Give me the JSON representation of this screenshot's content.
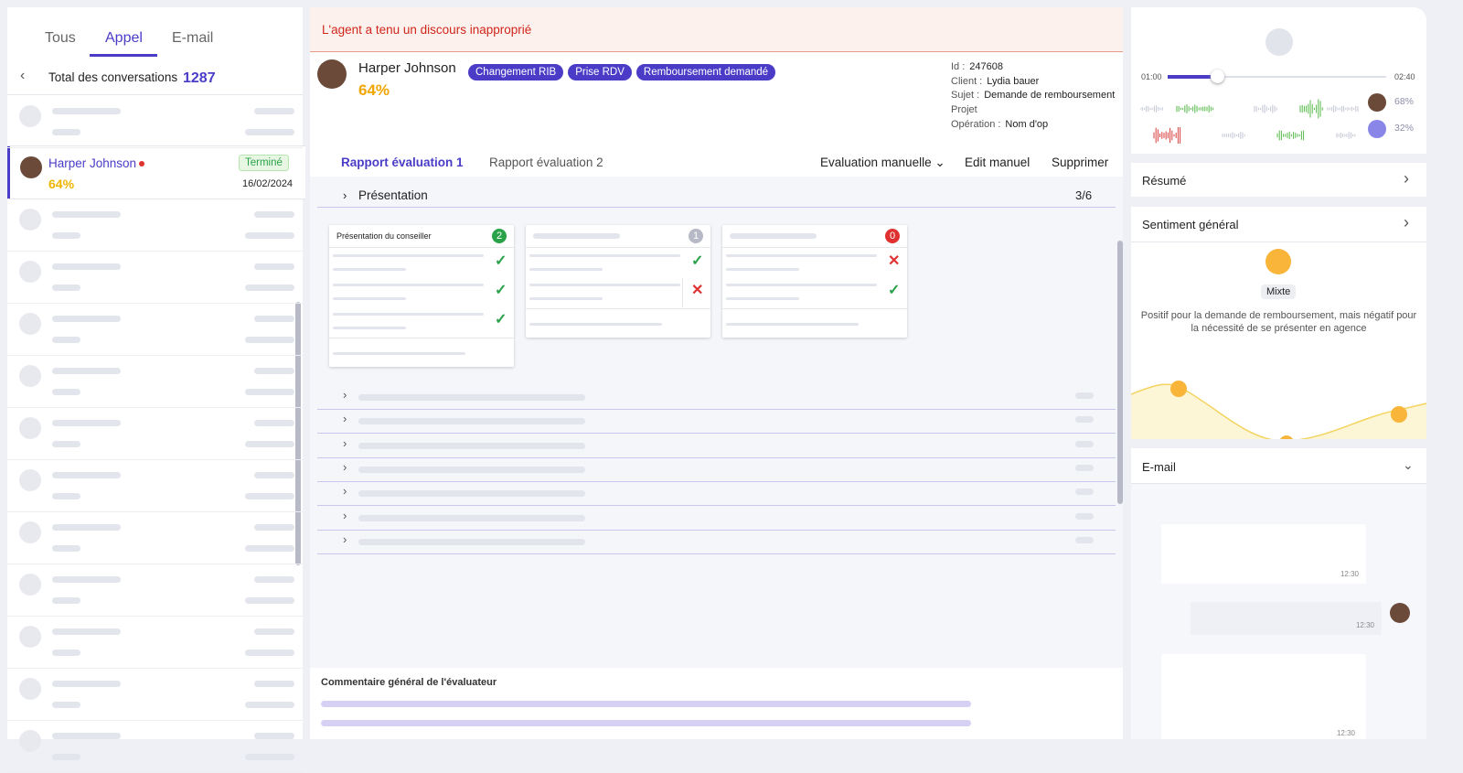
{
  "left": {
    "tabs": [
      "Tous",
      "Appel",
      "E-mail"
    ],
    "total_label": "Total des conversations",
    "total_value": "1287",
    "selected": {
      "name": "Harper Johnson",
      "status": "Terminé",
      "score": "64%",
      "date": "16/02/2024"
    }
  },
  "alert": "L'agent a tenu un discours inapproprié",
  "header": {
    "name": "Harper Johnson",
    "score": "64%",
    "tags": [
      "Changement RIB",
      "Prise RDV",
      "Remboursement demandé"
    ],
    "meta": [
      {
        "label": "Id :",
        "value": "247608"
      },
      {
        "label": "Client :",
        "value": "Lydia bauer"
      },
      {
        "label": "Sujet :",
        "value": "Demande de remboursement"
      },
      {
        "label": "Projet",
        "value": ""
      },
      {
        "label": "Opération :",
        "value": "Nom d'op"
      }
    ]
  },
  "report": {
    "tabs": [
      "Rapport évaluation 1",
      "Rapport évaluation 2"
    ],
    "actions": [
      "Evaluation manuelle",
      "Edit manuel",
      "Supprimer"
    ],
    "section": "Présentation",
    "section_score": "3/6",
    "cards": [
      {
        "title": "Présentation du conseiller",
        "badge": "2"
      },
      {
        "badge": "1"
      },
      {
        "badge": "0"
      }
    ],
    "comment_title": "Commentaire général de l'évaluateur"
  },
  "audio": {
    "start": "01:00",
    "end": "02:40",
    "agent_pct": "68%",
    "client_pct": "32%"
  },
  "right": {
    "summary": "Résumé",
    "sentiment": "Sentiment général",
    "sentiment_value": "Mixte",
    "sentiment_text": "Positif pour la demande de remboursement, mais négatif pour la nécessité de se présenter en agence",
    "email": "E-mail",
    "times": [
      "12:30",
      "12:30",
      "12:30"
    ]
  }
}
